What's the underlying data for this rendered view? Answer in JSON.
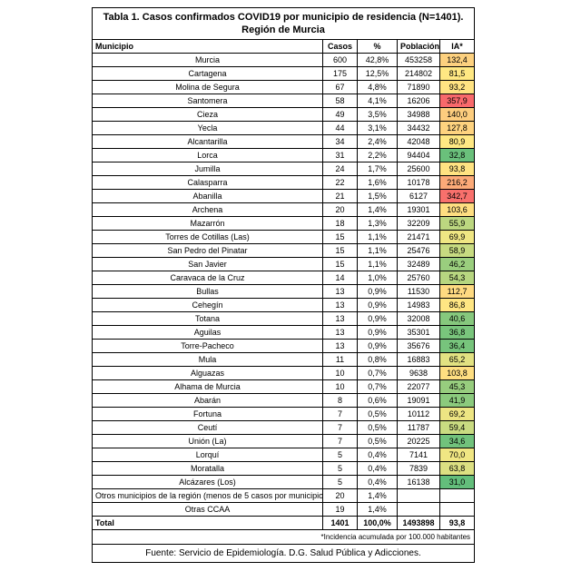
{
  "table": {
    "title_line1": "Tabla 1. Casos confirmados COVID19 por municipio de residencia (N=1401).",
    "title_line2": "Región de Murcia",
    "columns": [
      "Municipio",
      "Casos",
      "%",
      "Población",
      "IA*"
    ],
    "rows": [
      {
        "municipio": "Murcia",
        "casos": "600",
        "pct": "42,8%",
        "poblacion": "453258",
        "ia": "132,4",
        "ia_color": "#FDD17F"
      },
      {
        "municipio": "Cartagena",
        "casos": "175",
        "pct": "12,5%",
        "poblacion": "214802",
        "ia": "81,5",
        "ia_color": "#FFE883"
      },
      {
        "municipio": "Molina de Segura",
        "casos": "67",
        "pct": "4,8%",
        "poblacion": "71890",
        "ia": "93,2",
        "ia_color": "#FFE382"
      },
      {
        "municipio": "Santomera",
        "casos": "58",
        "pct": "4,1%",
        "poblacion": "16206",
        "ia": "357,9",
        "ia_color": "#F8696B"
      },
      {
        "municipio": "Cieza",
        "casos": "49",
        "pct": "3,5%",
        "poblacion": "34988",
        "ia": "140,0",
        "ia_color": "#FDCD7E"
      },
      {
        "municipio": "Yecla",
        "casos": "44",
        "pct": "3,1%",
        "poblacion": "34432",
        "ia": "127,8",
        "ia_color": "#FED37F"
      },
      {
        "municipio": "Alcantarilla",
        "casos": "34",
        "pct": "2,4%",
        "poblacion": "42048",
        "ia": "80,9",
        "ia_color": "#FFE883"
      },
      {
        "municipio": "Lorca",
        "casos": "31",
        "pct": "2,2%",
        "poblacion": "94404",
        "ia": "32,8",
        "ia_color": "#6AC07B"
      },
      {
        "municipio": "Jumilla",
        "casos": "24",
        "pct": "1,7%",
        "poblacion": "25600",
        "ia": "93,8",
        "ia_color": "#FFE382"
      },
      {
        "municipio": "Calasparra",
        "casos": "22",
        "pct": "1,6%",
        "poblacion": "10178",
        "ia": "216,2",
        "ia_color": "#FCAA78"
      },
      {
        "municipio": "Abanilla",
        "casos": "21",
        "pct": "1,5%",
        "poblacion": "6127",
        "ia": "342,7",
        "ia_color": "#F8706C"
      },
      {
        "municipio": "Archena",
        "casos": "20",
        "pct": "1,4%",
        "poblacion": "19301",
        "ia": "103,6",
        "ia_color": "#FEDE81"
      },
      {
        "municipio": "Mazarrón",
        "casos": "18",
        "pct": "1,3%",
        "poblacion": "32209",
        "ia": "55,9",
        "ia_color": "#BCD780"
      },
      {
        "municipio": "Torres de Cotillas (Las)",
        "casos": "15",
        "pct": "1,1%",
        "poblacion": "21471",
        "ia": "69,9",
        "ia_color": "#EFE683"
      },
      {
        "municipio": "San Pedro del Pinatar",
        "casos": "15",
        "pct": "1,1%",
        "poblacion": "25476",
        "ia": "58,9",
        "ia_color": "#C7DB81"
      },
      {
        "municipio": "San Javier",
        "casos": "15",
        "pct": "1,1%",
        "poblacion": "32489",
        "ia": "46,2",
        "ia_color": "#9ACE7E"
      },
      {
        "municipio": "Caravaca de la Cruz",
        "casos": "14",
        "pct": "1,0%",
        "poblacion": "25760",
        "ia": "54,3",
        "ia_color": "#B7D680"
      },
      {
        "municipio": "Bullas",
        "casos": "13",
        "pct": "0,9%",
        "poblacion": "11530",
        "ia": "112,7",
        "ia_color": "#FEDA81"
      },
      {
        "municipio": "Cehegín",
        "casos": "13",
        "pct": "0,9%",
        "poblacion": "14983",
        "ia": "86,8",
        "ia_color": "#FFE683"
      },
      {
        "municipio": "Totana",
        "casos": "13",
        "pct": "0,9%",
        "poblacion": "32008",
        "ia": "40,6",
        "ia_color": "#86C87D"
      },
      {
        "municipio": "Aguilas",
        "casos": "13",
        "pct": "0,9%",
        "poblacion": "35301",
        "ia": "36,8",
        "ia_color": "#79C57C"
      },
      {
        "municipio": "Torre-Pacheco",
        "casos": "13",
        "pct": "0,9%",
        "poblacion": "35676",
        "ia": "36,4",
        "ia_color": "#77C47C"
      },
      {
        "municipio": "Mula",
        "casos": "11",
        "pct": "0,8%",
        "poblacion": "16883",
        "ia": "65,2",
        "ia_color": "#E2E282"
      },
      {
        "municipio": "Alguazas",
        "casos": "10",
        "pct": "0,7%",
        "poblacion": "9638",
        "ia": "103,8",
        "ia_color": "#FEDE81"
      },
      {
        "municipio": "Alhama de Murcia",
        "casos": "10",
        "pct": "0,7%",
        "poblacion": "22077",
        "ia": "45,3",
        "ia_color": "#97CD7E"
      },
      {
        "municipio": "Abarán",
        "casos": "8",
        "pct": "0,6%",
        "poblacion": "19091",
        "ia": "41,9",
        "ia_color": "#8BCA7D"
      },
      {
        "municipio": "Fortuna",
        "casos": "7",
        "pct": "0,5%",
        "poblacion": "10112",
        "ia": "69,2",
        "ia_color": "#EDE583"
      },
      {
        "municipio": "Ceutí",
        "casos": "7",
        "pct": "0,5%",
        "poblacion": "11787",
        "ia": "59,4",
        "ia_color": "#C9DB81"
      },
      {
        "municipio": "Unión (La)",
        "casos": "7",
        "pct": "0,5%",
        "poblacion": "20225",
        "ia": "34,6",
        "ia_color": "#71C27C"
      },
      {
        "municipio": "Lorquí",
        "casos": "5",
        "pct": "0,4%",
        "poblacion": "7141",
        "ia": "70,0",
        "ia_color": "#F0E683"
      },
      {
        "municipio": "Moratalla",
        "casos": "5",
        "pct": "0,4%",
        "poblacion": "7839",
        "ia": "63,8",
        "ia_color": "#DCE082"
      },
      {
        "municipio": "Alcázares (Los)",
        "casos": "5",
        "pct": "0,4%",
        "poblacion": "16138",
        "ia": "31,0",
        "ia_color": "#63BE7B"
      },
      {
        "municipio": "Otros municipios de la región (menos de 5 casos por municipio)",
        "casos": "20",
        "pct": "1,4%",
        "poblacion": "",
        "ia": "",
        "ia_color": null
      },
      {
        "municipio": "Otras CCAA",
        "casos": "19",
        "pct": "1,4%",
        "poblacion": "",
        "ia": "",
        "ia_color": null
      }
    ],
    "total": {
      "label": "Total",
      "casos": "1401",
      "pct": "100,0%",
      "poblacion": "1493898",
      "ia": "93,8"
    },
    "footnote": "*Incidencia acumulada por 100.000 habitantes",
    "source": "Fuente: Servicio de Epidemiología. D.G. Salud Pública y Adicciones."
  },
  "colors": {
    "border": "#000000",
    "scale_min_green": "#63BE7B",
    "scale_mid_yellow": "#FFEB84",
    "scale_max_red": "#F8696B"
  }
}
